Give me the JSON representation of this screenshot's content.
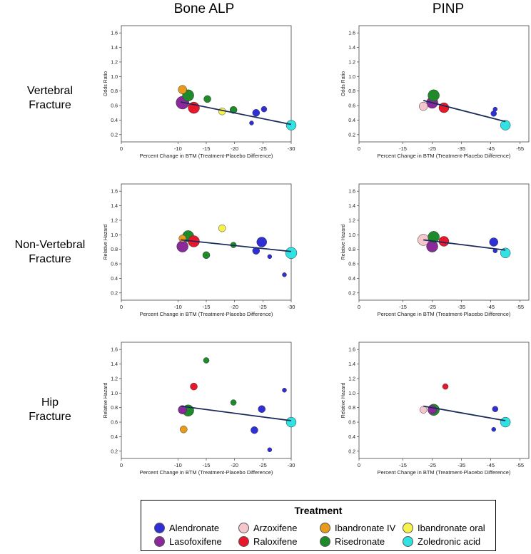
{
  "column_headers": [
    "Bone ALP",
    "PINP"
  ],
  "row_headers": [
    [
      "Vertebral",
      "Fracture"
    ],
    [
      "Non-Vertebral",
      "Fracture"
    ],
    [
      "Hip",
      "Fracture"
    ]
  ],
  "legend": {
    "title": "Treatment",
    "items": [
      {
        "name": "Alendronate",
        "color": "#2f2fd6"
      },
      {
        "name": "Arzoxifene",
        "color": "#f5c6cb"
      },
      {
        "name": "Ibandronate IV",
        "color": "#e89a1a"
      },
      {
        "name": "Ibandronate oral",
        "color": "#f7f24a"
      },
      {
        "name": "Lasofoxifene",
        "color": "#8a2a9a"
      },
      {
        "name": "Raloxifene",
        "color": "#e8182a"
      },
      {
        "name": "Risedronate",
        "color": "#1e8a2a"
      },
      {
        "name": "Zoledronic acid",
        "color": "#30e2e2"
      }
    ]
  },
  "chart_data": [
    {
      "type": "scatter",
      "row": "Vertebral Fracture",
      "marker": "Bone ALP",
      "xlabel": "Percent Change in BTM (Treatment-Placebo Difference)",
      "ylabel": "Odds Ratio",
      "xlim": [
        0,
        -30
      ],
      "ylim": [
        0.1,
        1.7
      ],
      "xticks": [
        "0",
        "-10",
        "-15",
        "-20",
        "-25",
        "-30"
      ],
      "xtick_values": [
        0,
        -10,
        -15,
        -20,
        -25,
        -30
      ],
      "yticks": [
        0.2,
        0.4,
        0.6,
        0.8,
        1.0,
        1.2,
        1.4,
        1.6
      ],
      "fit_line": [
        [
          -10.5,
          0.65
        ],
        [
          -30,
          0.34
        ]
      ],
      "points": [
        {
          "treatment": "Ibandronate IV",
          "x": -10.8,
          "y": 0.82,
          "size": 6
        },
        {
          "treatment": "Lasofoxifene",
          "x": -10.8,
          "y": 0.64,
          "size": 9
        },
        {
          "treatment": "Risedronate",
          "x": -11.8,
          "y": 0.74,
          "size": 8
        },
        {
          "treatment": "Raloxifene",
          "x": -12.8,
          "y": 0.57,
          "size": 8
        },
        {
          "treatment": "Risedronate",
          "x": -15.2,
          "y": 0.69,
          "size": 5
        },
        {
          "treatment": "Ibandronate oral",
          "x": -17.8,
          "y": 0.52,
          "size": 5
        },
        {
          "treatment": "Risedronate",
          "x": -19.8,
          "y": 0.54,
          "size": 5
        },
        {
          "treatment": "Alendronate",
          "x": -23.0,
          "y": 0.36,
          "size": 3
        },
        {
          "treatment": "Alendronate",
          "x": -23.8,
          "y": 0.5,
          "size": 5
        },
        {
          "treatment": "Alendronate",
          "x": -25.2,
          "y": 0.55,
          "size": 4
        },
        {
          "treatment": "Zoledronic acid",
          "x": -30.0,
          "y": 0.33,
          "size": 7
        }
      ]
    },
    {
      "type": "scatter",
      "row": "Vertebral Fracture",
      "marker": "PINP",
      "xlabel": "Percent Change in BTM (Treatment-Placebo Difference)",
      "ylabel": "Odds Ratio",
      "xlim": [
        0,
        -58
      ],
      "ylim": [
        0.1,
        1.7
      ],
      "xticks": [
        "0",
        "-15",
        "-25",
        "-35",
        "-45",
        "-55"
      ],
      "xtick_values": [
        0,
        -15,
        -25,
        -35,
        -45,
        -55
      ],
      "yticks": [
        0.2,
        0.4,
        0.6,
        0.8,
        1.0,
        1.2,
        1.4,
        1.6
      ],
      "fit_line": [
        [
          -22,
          0.67
        ],
        [
          -50,
          0.38
        ]
      ],
      "points": [
        {
          "treatment": "Arzoxifene",
          "x": -22.0,
          "y": 0.59,
          "size": 6
        },
        {
          "treatment": "Lasofoxifene",
          "x": -25.0,
          "y": 0.64,
          "size": 8
        },
        {
          "treatment": "Risedronate",
          "x": -25.5,
          "y": 0.74,
          "size": 8
        },
        {
          "treatment": "Raloxifene",
          "x": -29.0,
          "y": 0.57,
          "size": 7
        },
        {
          "treatment": "Alendronate",
          "x": -46.5,
          "y": 0.55,
          "size": 3
        },
        {
          "treatment": "Alendronate",
          "x": -46.0,
          "y": 0.49,
          "size": 4
        },
        {
          "treatment": "Zoledronic acid",
          "x": -50.0,
          "y": 0.33,
          "size": 7
        }
      ]
    },
    {
      "type": "scatter",
      "row": "Non-Vertebral Fracture",
      "marker": "Bone ALP",
      "xlabel": "Percent Change in BTM (Treatment-Placebo Difference)",
      "ylabel": "Relative Hazard",
      "xlim": [
        0,
        -30
      ],
      "ylim": [
        0.1,
        1.7
      ],
      "xticks": [
        "0",
        "-10",
        "-15",
        "-20",
        "-25",
        "-30"
      ],
      "xtick_values": [
        0,
        -10,
        -15,
        -20,
        -25,
        -30
      ],
      "yticks": [
        0.2,
        0.4,
        0.6,
        0.8,
        1.0,
        1.2,
        1.4,
        1.6
      ],
      "fit_line": [
        [
          -10.5,
          0.93
        ],
        [
          -30,
          0.77
        ]
      ],
      "points": [
        {
          "treatment": "Ibandronate IV",
          "x": -10.8,
          "y": 0.95,
          "size": 5
        },
        {
          "treatment": "Lasofoxifene",
          "x": -10.8,
          "y": 0.84,
          "size": 8
        },
        {
          "treatment": "Risedronate",
          "x": -11.8,
          "y": 0.98,
          "size": 8
        },
        {
          "treatment": "Raloxifene",
          "x": -12.8,
          "y": 0.91,
          "size": 8
        },
        {
          "treatment": "Risedronate",
          "x": -15.0,
          "y": 0.72,
          "size": 5
        },
        {
          "treatment": "Ibandronate oral",
          "x": -17.8,
          "y": 1.09,
          "size": 5
        },
        {
          "treatment": "Risedronate",
          "x": -19.8,
          "y": 0.86,
          "size": 4
        },
        {
          "treatment": "Alendronate",
          "x": -23.8,
          "y": 0.78,
          "size": 5
        },
        {
          "treatment": "Alendronate",
          "x": -24.8,
          "y": 0.9,
          "size": 7
        },
        {
          "treatment": "Alendronate",
          "x": -26.2,
          "y": 0.7,
          "size": 3
        },
        {
          "treatment": "Alendronate",
          "x": -28.8,
          "y": 0.45,
          "size": 3
        },
        {
          "treatment": "Zoledronic acid",
          "x": -30.0,
          "y": 0.75,
          "size": 8
        }
      ]
    },
    {
      "type": "scatter",
      "row": "Non-Vertebral Fracture",
      "marker": "PINP",
      "xlabel": "Percent Change in BTM (Treatment-Placebo Difference)",
      "ylabel": "Relative Hazard",
      "xlim": [
        0,
        -58
      ],
      "ylim": [
        0.1,
        1.7
      ],
      "xticks": [
        "0",
        "-15",
        "-25",
        "-35",
        "-45",
        "-55"
      ],
      "xtick_values": [
        0,
        -15,
        -25,
        -35,
        -45,
        -55
      ],
      "yticks": [
        0.2,
        0.4,
        0.6,
        0.8,
        1.0,
        1.2,
        1.4,
        1.6
      ],
      "fit_line": [
        [
          -22,
          0.93
        ],
        [
          -50,
          0.79
        ]
      ],
      "points": [
        {
          "treatment": "Arzoxifene",
          "x": -22.0,
          "y": 0.93,
          "size": 8
        },
        {
          "treatment": "Lasofoxifene",
          "x": -25.0,
          "y": 0.84,
          "size": 8
        },
        {
          "treatment": "Risedronate",
          "x": -25.5,
          "y": 0.97,
          "size": 8
        },
        {
          "treatment": "Raloxifene",
          "x": -29.0,
          "y": 0.91,
          "size": 7
        },
        {
          "treatment": "Alendronate",
          "x": -46.0,
          "y": 0.9,
          "size": 6
        },
        {
          "treatment": "Alendronate",
          "x": -46.5,
          "y": 0.78,
          "size": 3
        },
        {
          "treatment": "Zoledronic acid",
          "x": -50.0,
          "y": 0.75,
          "size": 7
        }
      ]
    },
    {
      "type": "scatter",
      "row": "Hip Fracture",
      "marker": "Bone ALP",
      "xlabel": "Percent Change in BTM (Treatment-Placebo Difference)",
      "ylabel": "Relative Hazard",
      "xlim": [
        0,
        -30
      ],
      "ylim": [
        0.1,
        1.7
      ],
      "xticks": [
        "0",
        "-10",
        "-15",
        "-20",
        "-25",
        "-30"
      ],
      "xtick_values": [
        0,
        -10,
        -15,
        -20,
        -25,
        -30
      ],
      "yticks": [
        0.2,
        0.4,
        0.6,
        0.8,
        1.0,
        1.2,
        1.4,
        1.6
      ],
      "fit_line": [
        [
          -10.5,
          0.82
        ],
        [
          -30,
          0.62
        ]
      ],
      "points": [
        {
          "treatment": "Ibandronate IV",
          "x": -11.0,
          "y": 0.5,
          "size": 5
        },
        {
          "treatment": "Lasofoxifene",
          "x": -10.8,
          "y": 0.77,
          "size": 6
        },
        {
          "treatment": "Risedronate",
          "x": -11.8,
          "y": 0.76,
          "size": 8
        },
        {
          "treatment": "Raloxifene",
          "x": -12.8,
          "y": 1.09,
          "size": 5
        },
        {
          "treatment": "Risedronate",
          "x": -15.0,
          "y": 1.45,
          "size": 4
        },
        {
          "treatment": "Risedronate",
          "x": -19.8,
          "y": 0.87,
          "size": 4
        },
        {
          "treatment": "Alendronate",
          "x": -23.5,
          "y": 0.49,
          "size": 5
        },
        {
          "treatment": "Alendronate",
          "x": -24.8,
          "y": 0.78,
          "size": 5
        },
        {
          "treatment": "Alendronate",
          "x": -26.2,
          "y": 0.22,
          "size": 3
        },
        {
          "treatment": "Alendronate",
          "x": -28.8,
          "y": 1.04,
          "size": 3
        },
        {
          "treatment": "Zoledronic acid",
          "x": -30.0,
          "y": 0.6,
          "size": 7
        }
      ]
    },
    {
      "type": "scatter",
      "row": "Hip Fracture",
      "marker": "PINP",
      "xlabel": "Percent Change in BTM (Treatment-Placebo Difference)",
      "ylabel": "Relative Hazard",
      "xlim": [
        0,
        -58
      ],
      "ylim": [
        0.1,
        1.7
      ],
      "xticks": [
        "0",
        "-15",
        "-25",
        "-35",
        "-45",
        "-55"
      ],
      "xtick_values": [
        0,
        -15,
        -25,
        -35,
        -45,
        -55
      ],
      "yticks": [
        0.2,
        0.4,
        0.6,
        0.8,
        1.0,
        1.2,
        1.4,
        1.6
      ],
      "fit_line": [
        [
          -22,
          0.82
        ],
        [
          -50,
          0.62
        ]
      ],
      "points": [
        {
          "treatment": "Arzoxifene",
          "x": -22.0,
          "y": 0.77,
          "size": 5
        },
        {
          "treatment": "Lasofoxifene",
          "x": -25.0,
          "y": 0.77,
          "size": 6
        },
        {
          "treatment": "Risedronate",
          "x": -25.5,
          "y": 0.77,
          "size": 8
        },
        {
          "treatment": "Raloxifene",
          "x": -29.5,
          "y": 1.09,
          "size": 4
        },
        {
          "treatment": "Alendronate",
          "x": -46.5,
          "y": 0.78,
          "size": 4
        },
        {
          "treatment": "Alendronate",
          "x": -46.0,
          "y": 0.5,
          "size": 3
        },
        {
          "treatment": "Zoledronic acid",
          "x": -50.0,
          "y": 0.6,
          "size": 7
        }
      ]
    }
  ]
}
